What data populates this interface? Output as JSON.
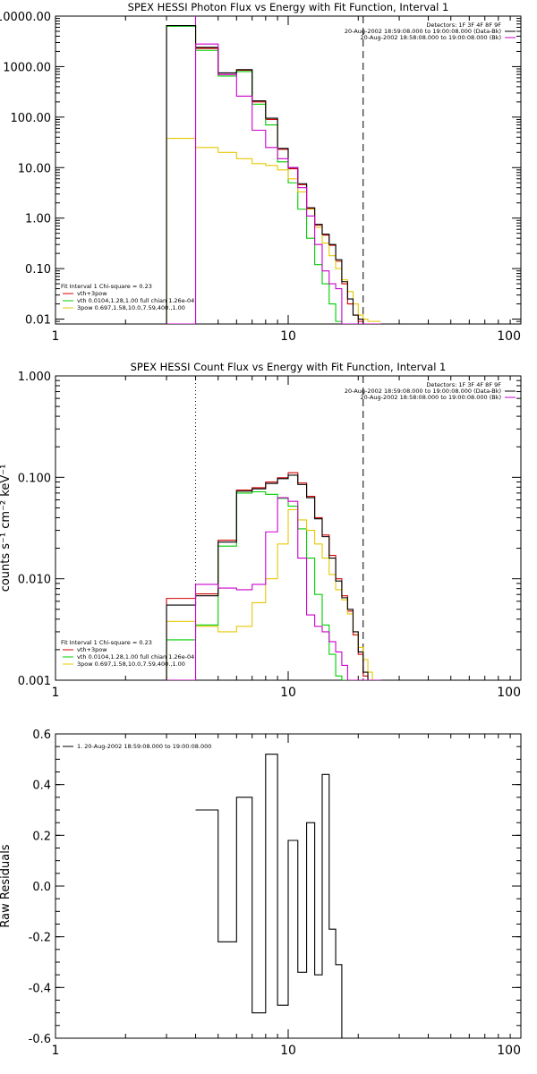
{
  "palette": {
    "vth_plus_3pow": "#d00000",
    "vth": "#00cc00",
    "3pow": "#e6c800",
    "data": "#000000",
    "background": "#cc00cc",
    "low_marker": "#cc00cc",
    "axes": "#000000",
    "background_page": "#ffffff"
  },
  "chart_data": [
    {
      "id": "photon",
      "type": "line",
      "title": "SPEX HESSI Photon Flux vs Energy with Fit Function, Interval 1",
      "xlabel": "",
      "ylabel": "",
      "x_scale": "log",
      "y_scale": "log",
      "xlim": [
        1,
        100
      ],
      "ylim": [
        0.008,
        10000
      ],
      "x_ticks": [
        {
          "v": 1,
          "label": "1"
        },
        {
          "v": 10,
          "label": "10"
        },
        {
          "v": 100,
          "label": "100"
        }
      ],
      "y_ticks": [
        {
          "v": 10000,
          "label": "10000.00"
        },
        {
          "v": 1000,
          "label": "1000.00"
        },
        {
          "v": 100,
          "label": "100.00"
        },
        {
          "v": 10,
          "label": "10.00"
        },
        {
          "v": 1,
          "label": "1.00"
        },
        {
          "v": 0.1,
          "label": "0.10"
        },
        {
          "v": 0.01,
          "label": "0.01"
        }
      ],
      "vlines": [
        {
          "x": 4.0,
          "style": "solid",
          "color_key": "low_marker"
        },
        {
          "x": 21.0,
          "style": "dashed",
          "color_key": "data"
        }
      ],
      "edges": [
        3,
        4,
        5,
        6,
        7,
        8,
        9,
        10,
        11,
        12,
        13,
        14,
        15,
        16,
        17,
        18,
        19,
        20,
        21,
        22,
        23,
        24,
        25
      ],
      "series": [
        {
          "name": "vth+3pow",
          "color_key": "vth_plus_3pow",
          "values": [
            6500,
            2300,
            700,
            850,
            200,
            90,
            23,
            9.5,
            4.6,
            1.55,
            0.72,
            0.46,
            0.29,
            0.14,
            0.05,
            0.02,
            0.012,
            0.009,
            0.006,
            0.005,
            0.005,
            0.005
          ]
        },
        {
          "name": "vth 0.0104,1.28,1.00  full chian 1.26e-04",
          "color_key": "vth",
          "values": [
            6300,
            2100,
            650,
            800,
            180,
            70,
            13,
            5,
            1.5,
            0.4,
            0.12,
            0.05,
            0.02,
            0.009,
            0.005,
            0.005,
            0.005,
            0.005,
            0.005,
            0.005,
            0.005,
            0.005
          ]
        },
        {
          "name": "3pow 0.697,1.58,10.0,7.59,400.,1.00",
          "color_key": "3pow",
          "values": [
            38,
            25,
            20,
            15,
            12,
            11,
            9,
            6,
            3.3,
            1.5,
            0.65,
            0.32,
            0.18,
            0.1,
            0.06,
            0.035,
            0.02,
            0.012,
            0.01,
            0.009,
            0.009,
            0.009
          ]
        },
        {
          "name": "data",
          "color_key": "data",
          "values": [
            6500,
            2400,
            750,
            870,
            210,
            95,
            24,
            10,
            4.8,
            1.6,
            0.75,
            0.48,
            0.3,
            0.15,
            0.055,
            0.025,
            0.012,
            0.01,
            0.006,
            0.005,
            0.005,
            0.005
          ]
        },
        {
          "name": "background",
          "color_key": "background",
          "values": [
            0.005,
            2800,
            700,
            260,
            55,
            25,
            15,
            10,
            4,
            1.1,
            0.3,
            0.09,
            0.05,
            0.04,
            0.007,
            0.005,
            0.005,
            0.005,
            0.005,
            0.005,
            0.005,
            0.005
          ]
        }
      ],
      "legend_left": [
        {
          "text": "Fit Interval 1    Chi-square = 0.23",
          "color_key": "data"
        },
        {
          "text": "vth+3pow",
          "color_key": "vth_plus_3pow"
        },
        {
          "text": "vth 0.0104,1.28,1.00  full chian 1.26e-04",
          "color_key": "vth"
        },
        {
          "text": "3pow 0.697,1.58,10.0,7.59,400.,1.00",
          "color_key": "3pow"
        }
      ],
      "legend_right": [
        {
          "text": "Detectors: 1F 3F 4F 8F 9F",
          "color_key": "data",
          "line": false
        },
        {
          "text": "20-Aug-2002 18:59:08.000 to 19:00:08.000 (Data-Bk)",
          "color_key": "data",
          "line": true
        },
        {
          "text": "20-Aug-2002 18:58:08.000 to 19:00:08.000 (Bk)",
          "color_key": "background",
          "line": true
        }
      ]
    },
    {
      "id": "count",
      "type": "line",
      "title": "SPEX HESSI Count Flux vs Energy with Fit Function, Interval 1",
      "xlabel": "",
      "ylabel": "counts s⁻¹ cm⁻² keV⁻¹",
      "x_scale": "log",
      "y_scale": "log",
      "xlim": [
        1,
        100
      ],
      "ylim": [
        0.001,
        1
      ],
      "x_ticks": [
        {
          "v": 1,
          "label": "1"
        },
        {
          "v": 10,
          "label": "10"
        },
        {
          "v": 100,
          "label": "100"
        }
      ],
      "y_ticks": [
        {
          "v": 1,
          "label": "1.000"
        },
        {
          "v": 0.1,
          "label": "0.100"
        },
        {
          "v": 0.01,
          "label": "0.010"
        },
        {
          "v": 0.001,
          "label": "0.001"
        }
      ],
      "vlines": [
        {
          "x": 4.0,
          "style": "dotted",
          "color_key": "data"
        },
        {
          "x": 21.0,
          "style": "dashed",
          "color_key": "data"
        }
      ],
      "edges": [
        3,
        4,
        5,
        6,
        7,
        8,
        9,
        10,
        11,
        12,
        13,
        14,
        15,
        16,
        17,
        18,
        19,
        20,
        21,
        22,
        23,
        24,
        25
      ],
      "series": [
        {
          "name": "vth+3pow",
          "color_key": "vth_plus_3pow",
          "values": [
            0.0064,
            0.0071,
            0.024,
            0.075,
            0.079,
            0.09,
            0.099,
            0.111,
            0.088,
            0.065,
            0.04,
            0.027,
            0.017,
            0.01,
            0.0068,
            0.0048,
            0.0028,
            0.0018,
            0.0011,
            0.001,
            0.001,
            0.001
          ]
        },
        {
          "name": "vth 0.0104,1.28,1.00  full chian 1.26e-04",
          "color_key": "vth",
          "values": [
            0.0025,
            0.0035,
            0.021,
            0.07,
            0.072,
            0.068,
            0.062,
            0.052,
            0.031,
            0.016,
            0.007,
            0.0035,
            0.0018,
            0.0011,
            0.001,
            0.001,
            0.001,
            0.001,
            0.001,
            0.001,
            0.001,
            0.001
          ]
        },
        {
          "name": "3pow 0.697,1.58,10.0,7.59,400.,1.00",
          "color_key": "3pow",
          "values": [
            0.0038,
            0.0034,
            0.003,
            0.0034,
            0.0058,
            0.01,
            0.022,
            0.048,
            0.038,
            0.03,
            0.022,
            0.016,
            0.011,
            0.0078,
            0.0062,
            0.0045,
            0.003,
            0.0021,
            0.0016,
            0.0012,
            0.001,
            0.001
          ]
        },
        {
          "name": "data",
          "color_key": "data",
          "values": [
            0.0055,
            0.0068,
            0.023,
            0.073,
            0.077,
            0.087,
            0.097,
            0.105,
            0.085,
            0.063,
            0.039,
            0.026,
            0.016,
            0.0095,
            0.0065,
            0.005,
            0.003,
            0.0019,
            0.0012,
            0.001,
            0.001,
            0.001
          ]
        },
        {
          "name": "background",
          "color_key": "background",
          "values": [
            0.001,
            0.0088,
            0.0081,
            0.0078,
            0.0088,
            0.029,
            0.063,
            0.058,
            0.016,
            0.0044,
            0.0034,
            0.003,
            0.0024,
            0.0019,
            0.0014,
            0.001,
            0.001,
            0.001,
            0.001,
            0.001,
            0.001,
            0.001
          ]
        }
      ],
      "legend_left": [
        {
          "text": "Fit Interval 1    Chi-square = 0.23",
          "color_key": "data"
        },
        {
          "text": "vth+3pow",
          "color_key": "vth_plus_3pow"
        },
        {
          "text": "vth 0.0104,1.28,1.00  full chian 1.26e-04",
          "color_key": "vth"
        },
        {
          "text": "3pow 0.697,1.58,10.0,7.59,400.,1.00",
          "color_key": "3pow"
        }
      ],
      "legend_right": [
        {
          "text": "Detectors: 1F 3F 4F 8F 9F",
          "color_key": "data",
          "line": false
        },
        {
          "text": "20-Aug-2002 18:59:08.000 to 19:00:08.000 (Data-Bk)",
          "color_key": "data",
          "line": true
        },
        {
          "text": "20-Aug-2002 18:58:08.000 to 19:00:08.000 (Bk)",
          "color_key": "background",
          "line": true
        }
      ]
    },
    {
      "id": "residuals",
      "type": "line",
      "title": "",
      "xlabel": "",
      "ylabel": "Raw Residuals",
      "x_scale": "log",
      "y_scale": "linear",
      "xlim": [
        1,
        100
      ],
      "ylim": [
        -0.6,
        0.6
      ],
      "x_ticks": [
        {
          "v": 1,
          "label": "1"
        },
        {
          "v": 10,
          "label": "10"
        },
        {
          "v": 100,
          "label": "100"
        }
      ],
      "y_ticks": [
        {
          "v": 0.6,
          "label": "0.6"
        },
        {
          "v": 0.4,
          "label": "0.4"
        },
        {
          "v": 0.2,
          "label": "0.2"
        },
        {
          "v": 0.0,
          "label": "0.0"
        },
        {
          "v": -0.2,
          "label": "-0.2"
        },
        {
          "v": -0.4,
          "label": "-0.4"
        },
        {
          "v": -0.6,
          "label": "-0.6"
        }
      ],
      "vlines": [],
      "edges": [
        4,
        5,
        6,
        7,
        8,
        9,
        10,
        11,
        12,
        13,
        14,
        15,
        16,
        17,
        18,
        19,
        20
      ],
      "series": [
        {
          "name": "1. 20-Aug-2002 18:59:08.000 to 19:00:08.000",
          "color_key": "data",
          "values": [
            0.3,
            -0.22,
            0.35,
            -0.5,
            0.52,
            -0.47,
            0.18,
            -0.34,
            0.25,
            -0.35,
            0.44,
            -0.17,
            -0.31,
            -0.6,
            -0.6,
            -0.6
          ]
        }
      ],
      "legend_left": [],
      "legend_right": [],
      "legend_top_left": [
        {
          "text": "1. 20-Aug-2002 18:59:08.000 to 19:00:08.000",
          "color_key": "data"
        }
      ]
    }
  ]
}
